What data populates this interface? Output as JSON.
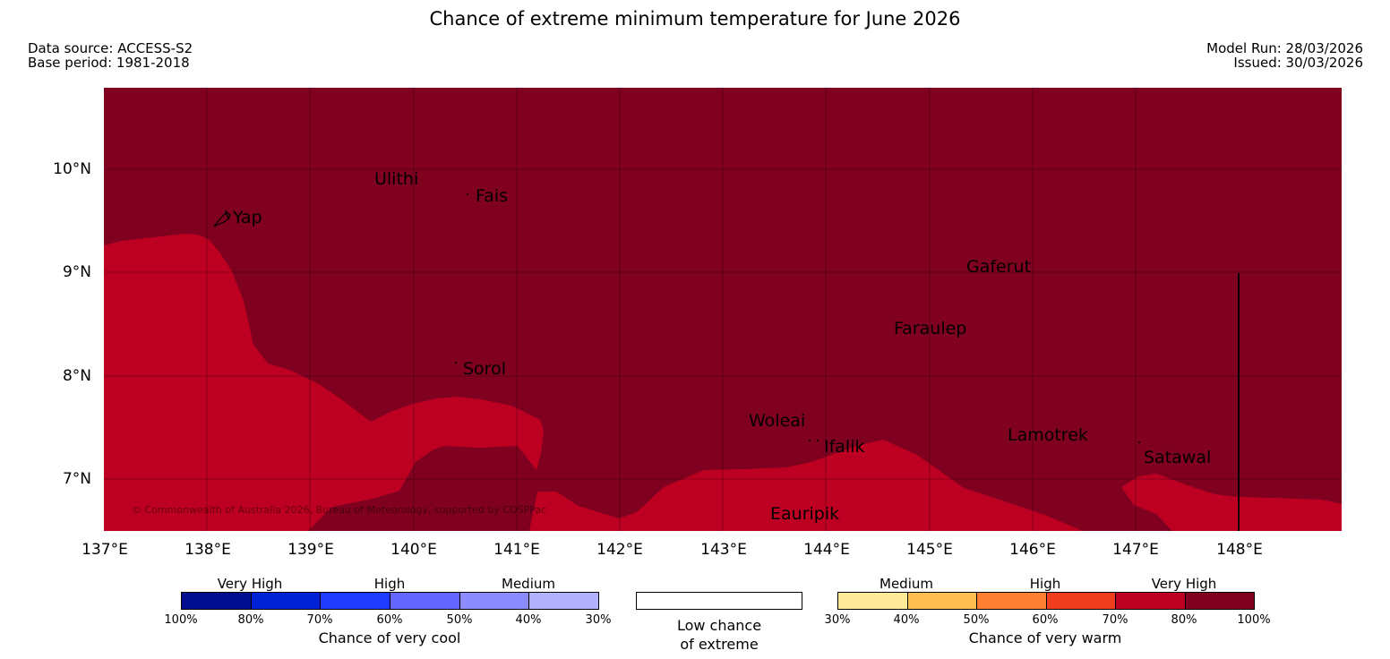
{
  "title": "Chance of extreme minimum temperature for June 2026",
  "meta": {
    "data_source": "Data source: ACCESS-S2",
    "base_period": "Base period: 1981-2018",
    "model_run": "Model Run: 28/03/2026",
    "issued": "Issued: 30/03/2026"
  },
  "map": {
    "latitudes": [
      "10°N",
      "9°N",
      "8°N",
      "7°N"
    ],
    "longitudes": [
      "137°E",
      "138°E",
      "139°E",
      "140°E",
      "141°E",
      "142°E",
      "143°E",
      "144°E",
      "145°E",
      "146°E",
      "147°E",
      "148°E"
    ],
    "places": [
      "Ulithi",
      "Fais",
      "Yap",
      "Gaferut",
      "Faraulep",
      "Sorol",
      "Woleai",
      "Ifalik",
      "Lamotrek",
      "Satawal",
      "Eauripik"
    ],
    "copyright": "© Commonwealth of Australia 2026, Bureau of Meteorology, supported by COSPPac",
    "colors": {
      "very_high_warm": "#800020",
      "high_warm": "#bd0021"
    }
  },
  "legend": {
    "cool": {
      "categories": [
        "Very High",
        "High",
        "Medium"
      ],
      "ticks": [
        "100%",
        "80%",
        "70%",
        "60%",
        "50%",
        "40%",
        "30%"
      ],
      "title": "Chance of very cool",
      "colors": [
        "#000e8f",
        "#0021d6",
        "#1f3bff",
        "#6565ff",
        "#8c8cff",
        "#b2b2ff"
      ]
    },
    "low": {
      "line1": "Low chance",
      "line2": "of extreme"
    },
    "warm": {
      "categories": [
        "Medium",
        "High",
        "Very High"
      ],
      "ticks": [
        "30%",
        "40%",
        "50%",
        "60%",
        "70%",
        "80%",
        "100%"
      ],
      "title": "Chance of very warm",
      "colors": [
        "#ffeb99",
        "#ffbf52",
        "#ff8033",
        "#f03d1f",
        "#bd0021",
        "#800020"
      ]
    }
  }
}
